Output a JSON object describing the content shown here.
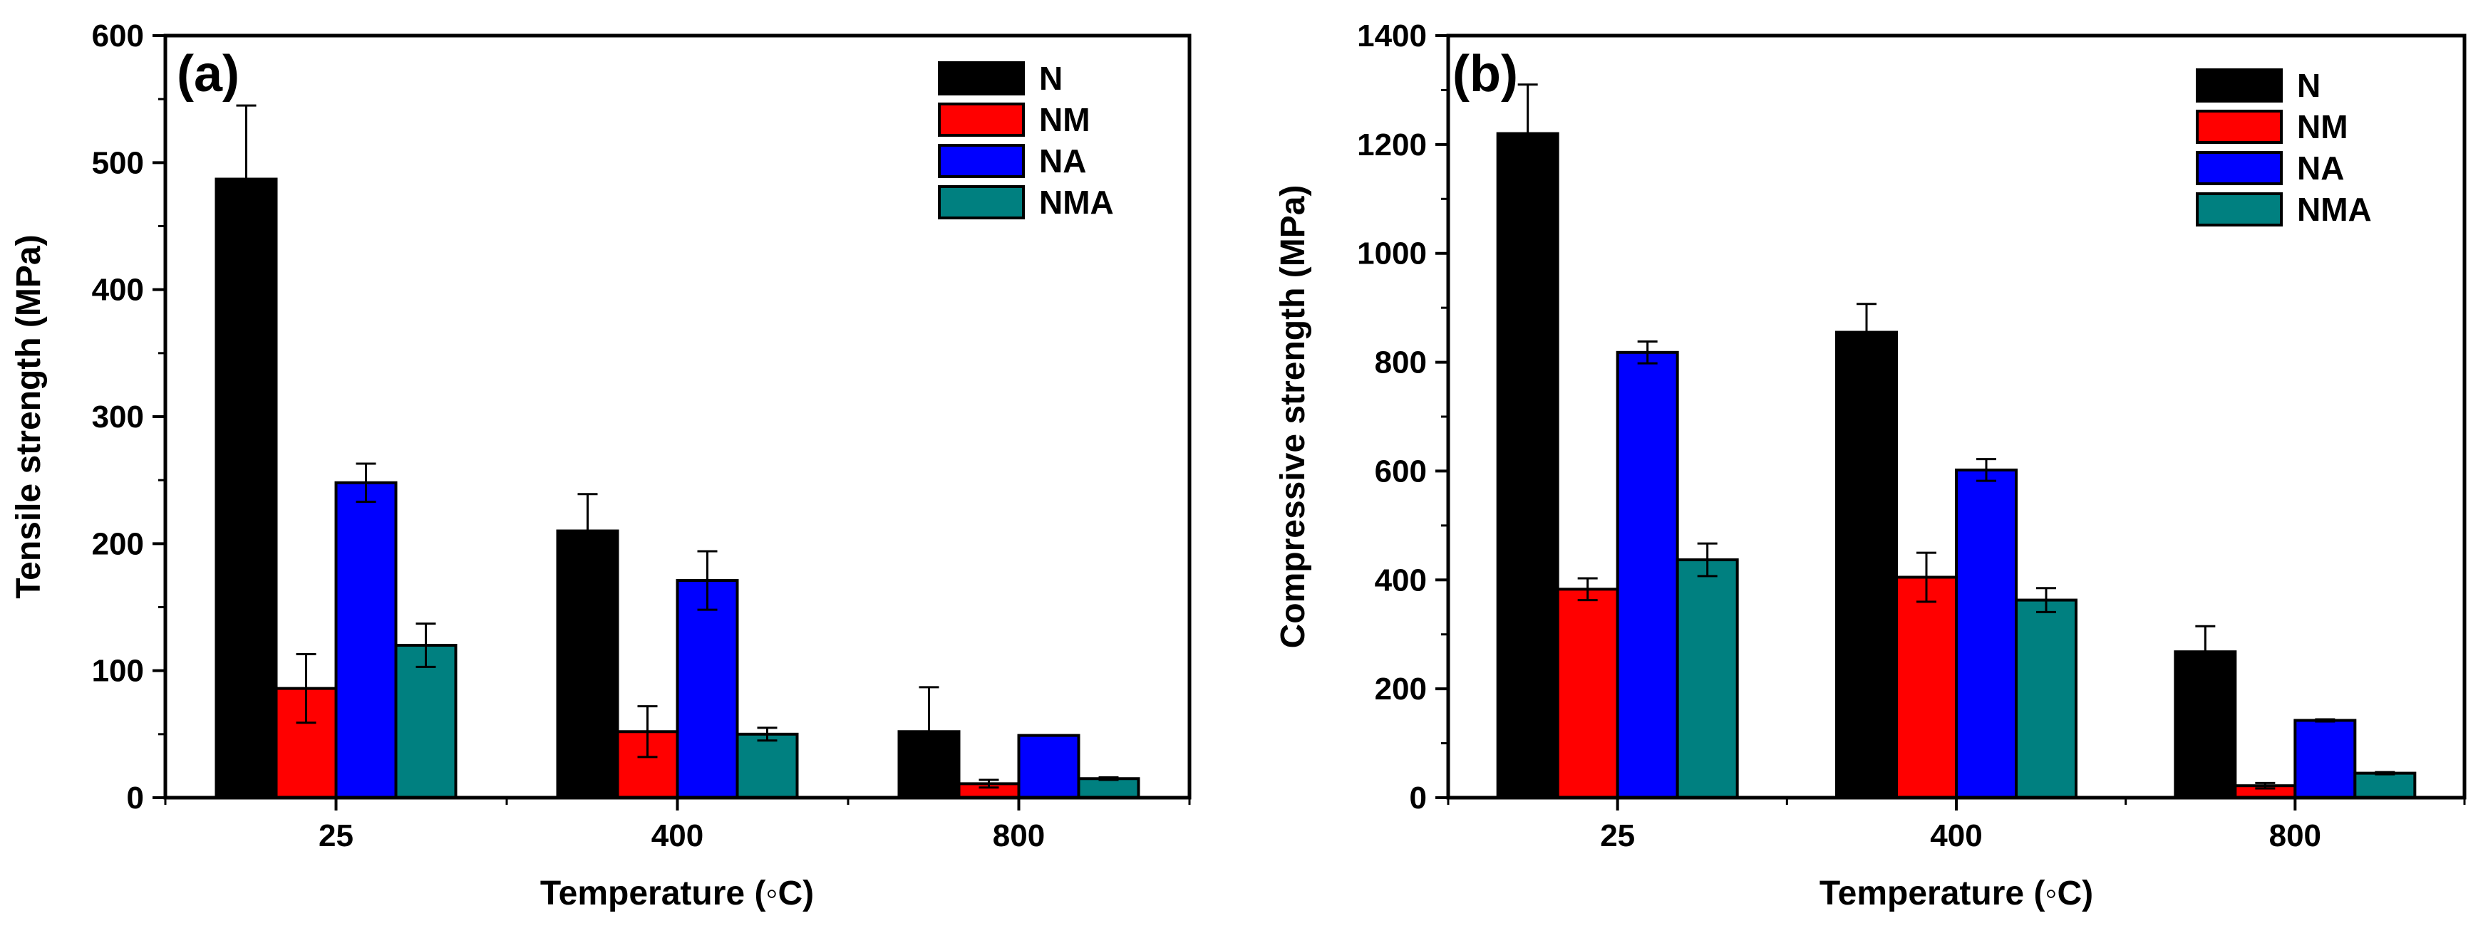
{
  "colors": {
    "N": "#000000",
    "NM": "#ff0000",
    "NA": "#0000ff",
    "NMA": "#008080"
  },
  "chart_data": [
    {
      "type": "bar",
      "panel_label": "(a)",
      "title": "",
      "xlabel": "Temperature (◦C)",
      "ylabel": "Tensile strength (MPa)",
      "categories": [
        "25",
        "400",
        "800"
      ],
      "ylim": [
        0,
        600
      ],
      "yticks": [
        0,
        100,
        200,
        300,
        400,
        500,
        600
      ],
      "grid": false,
      "legend_position": "top-right",
      "series": [
        {
          "name": "N",
          "values": [
            487,
            210,
            52
          ],
          "errors": [
            58,
            29,
            35
          ]
        },
        {
          "name": "NM",
          "values": [
            86,
            52,
            11
          ],
          "errors": [
            27,
            20,
            3
          ]
        },
        {
          "name": "NA",
          "values": [
            248,
            171,
            49
          ],
          "errors": [
            15,
            23,
            0
          ]
        },
        {
          "name": "NMA",
          "values": [
            120,
            50,
            15
          ],
          "errors": [
            17,
            5,
            1
          ]
        }
      ]
    },
    {
      "type": "bar",
      "panel_label": "(b)",
      "title": "",
      "xlabel": "Temperature (◦C)",
      "ylabel": "Compressive strength (MPa)",
      "categories": [
        "25",
        "400",
        "800"
      ],
      "ylim": [
        0,
        1400
      ],
      "yticks": [
        0,
        200,
        400,
        600,
        800,
        1000,
        1200,
        1400
      ],
      "grid": false,
      "legend_position": "top-right",
      "series": [
        {
          "name": "N",
          "values": [
            1220,
            855,
            268
          ],
          "errors": [
            90,
            52,
            47
          ]
        },
        {
          "name": "NM",
          "values": [
            383,
            405,
            22
          ],
          "errors": [
            20,
            45,
            5
          ]
        },
        {
          "name": "NA",
          "values": [
            818,
            602,
            142
          ],
          "errors": [
            20,
            20,
            2
          ]
        },
        {
          "name": "NMA",
          "values": [
            437,
            363,
            45
          ],
          "errors": [
            30,
            22,
            2
          ]
        }
      ]
    }
  ]
}
